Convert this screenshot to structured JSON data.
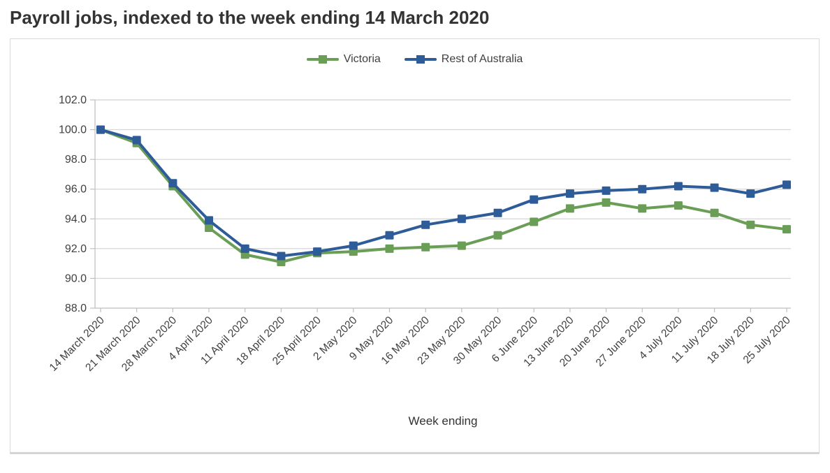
{
  "page_title": "Payroll jobs, indexed to the week ending 14 March 2020",
  "chart_data": {
    "type": "line",
    "title": "Payroll jobs, indexed to the week ending 14 March 2020",
    "xlabel": "Week ending",
    "ylabel": "",
    "grid": true,
    "legend_position": "top-center",
    "marker": "square",
    "ylim": [
      88.0,
      102.0
    ],
    "ytick_step": 2.0,
    "ytick_labels": [
      "88.0",
      "90.0",
      "92.0",
      "94.0",
      "96.0",
      "98.0",
      "100.0",
      "102.0"
    ],
    "categories": [
      "14 March 2020",
      "21 March 2020",
      "28 March 2020",
      "4 April 2020",
      "11 April 2020",
      "18 April 2020",
      "25 April 2020",
      "2 May 2020",
      "9 May 2020",
      "16 May 2020",
      "23 May 2020",
      "30 May 2020",
      "6 June 2020",
      "13 June 2020",
      "20 June 2020",
      "27 June 2020",
      "4 July 2020",
      "11 July 2020",
      "18 July 2020",
      "25 July 2020"
    ],
    "series": [
      {
        "name": "Victoria",
        "color": "#6a9e56",
        "values": [
          100.0,
          99.1,
          96.2,
          93.4,
          91.6,
          91.1,
          91.7,
          91.8,
          92.0,
          92.1,
          92.2,
          92.9,
          93.8,
          94.7,
          95.1,
          94.7,
          94.9,
          94.4,
          93.6,
          93.3
        ]
      },
      {
        "name": "Rest of Australia",
        "color": "#2e5c98",
        "values": [
          100.0,
          99.3,
          96.4,
          93.9,
          92.0,
          91.5,
          91.8,
          92.2,
          92.9,
          93.6,
          94.0,
          94.4,
          95.3,
          95.7,
          95.9,
          96.0,
          96.2,
          96.1,
          95.7,
          96.3
        ]
      }
    ],
    "style_colors": {
      "gridline": "#d9d9d9",
      "axis": "#bfbfbf",
      "tick_label": "#404040",
      "axis_title": "#333333",
      "title": "#333333"
    }
  }
}
